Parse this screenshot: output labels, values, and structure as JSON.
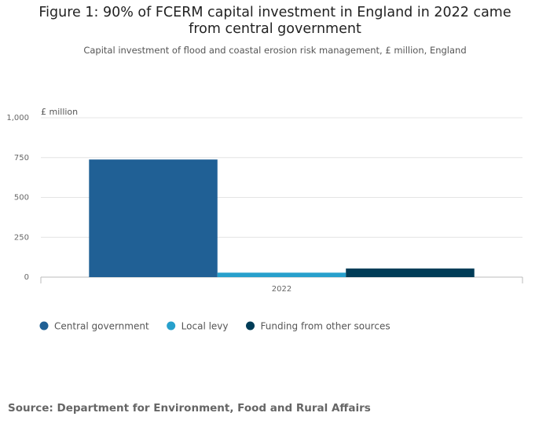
{
  "chart_data": {
    "type": "bar",
    "title": "Figure 1: 90% of FCERM capital investment in England in 2022 came from central government",
    "subtitle": "Capital investment of flood and coastal erosion risk management, £ million, England",
    "y_label": "£ million",
    "categories": [
      "2022"
    ],
    "series": [
      {
        "name": "Central government",
        "color": "#206095",
        "values": [
          738
        ]
      },
      {
        "name": "Local levy",
        "color": "#27a0cc",
        "values": [
          28
        ]
      },
      {
        "name": "Funding from other sources",
        "color": "#003c57",
        "values": [
          54
        ]
      }
    ],
    "ylim": [
      0,
      1000
    ],
    "yticks": [
      0,
      250,
      500,
      750,
      {
        "value": 1000,
        "label": "1,000"
      }
    ],
    "grid": true,
    "source": "Source: Department for Environment, Food and Rural Affairs"
  }
}
